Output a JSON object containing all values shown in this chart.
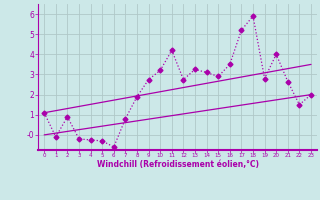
{
  "x": [
    0,
    1,
    2,
    3,
    4,
    5,
    6,
    7,
    8,
    9,
    10,
    11,
    12,
    13,
    14,
    15,
    16,
    17,
    18,
    19,
    20,
    21,
    22,
    23
  ],
  "y_main": [
    1.1,
    -0.1,
    0.9,
    -0.2,
    -0.25,
    -0.3,
    -0.6,
    0.8,
    1.9,
    2.75,
    3.2,
    4.2,
    2.75,
    3.25,
    3.1,
    2.9,
    3.5,
    5.2,
    5.9,
    2.8,
    4.0,
    2.65,
    1.5,
    2.0
  ],
  "y_trend1_start": 1.1,
  "y_trend1_end": 3.5,
  "y_trend2_start": 0.0,
  "y_trend2_end": 2.0,
  "line_color": "#aa00aa",
  "bg_color": "#cce8e8",
  "grid_color": "#b0c8c8",
  "xlabel": "Windchill (Refroidissement éolien,°C)",
  "xlim": [
    -0.5,
    23.5
  ],
  "ylim": [
    -0.75,
    6.5
  ],
  "xticks": [
    0,
    1,
    2,
    3,
    4,
    5,
    6,
    7,
    8,
    9,
    10,
    11,
    12,
    13,
    14,
    15,
    16,
    17,
    18,
    19,
    20,
    21,
    22,
    23
  ],
  "yticks": [
    0,
    1,
    2,
    3,
    4,
    5,
    6
  ],
  "ytick_labels": [
    "-0",
    "1",
    "2",
    "3",
    "4",
    "5",
    "6"
  ],
  "marker": "D",
  "markersize": 2.5,
  "linewidth": 0.9
}
